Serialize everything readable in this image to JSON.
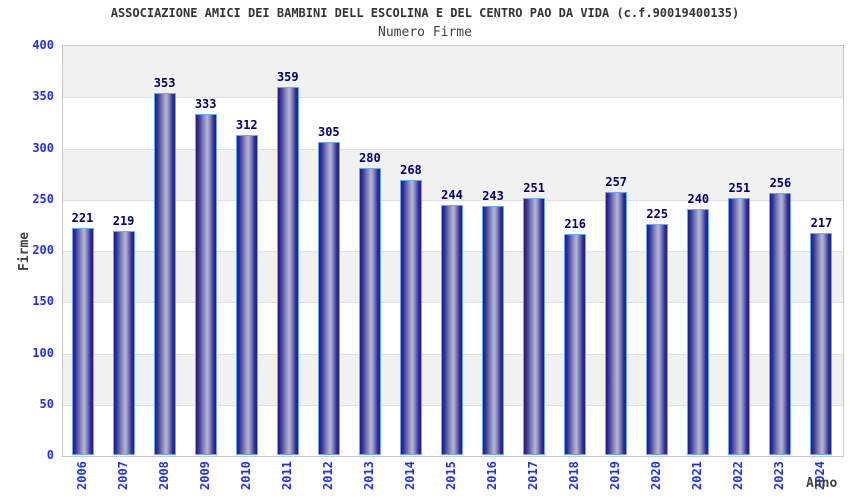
{
  "header": {
    "title": "ASSOCIAZIONE AMICI DEI BAMBINI DELL ESCOLINA E DEL CENTRO PAO DA VIDA (c.f.90019400135)",
    "subtitle": "Numero Firme"
  },
  "chart_data": {
    "type": "bar",
    "title": "Numero Firme",
    "xlabel": "Anno",
    "ylabel": "Firme",
    "categories": [
      "2006",
      "2007",
      "2008",
      "2009",
      "2010",
      "2011",
      "2012",
      "2013",
      "2014",
      "2015",
      "2016",
      "2017",
      "2018",
      "2019",
      "2020",
      "2021",
      "2022",
      "2023",
      "2024"
    ],
    "values": [
      221,
      219,
      353,
      333,
      312,
      359,
      305,
      280,
      268,
      244,
      243,
      251,
      216,
      257,
      225,
      240,
      251,
      256,
      217
    ],
    "ylim": [
      0,
      400
    ],
    "yticks": [
      0,
      50,
      100,
      150,
      200,
      250,
      300,
      350,
      400
    ],
    "legend": "none",
    "grid": "alternating horizontal bands",
    "colors": {
      "bar_edge_dark": "#1f1f7a",
      "bar_mid": "#30309a",
      "bar_light": "#8585bb",
      "bar_highlight": "#b6b6d6",
      "bar_border": "#6ea6f8",
      "value_label": "#000066",
      "tick_label": "#2233dd",
      "band_gray": "#f1f1f1",
      "band_white": "#ffffff",
      "gridline": "#e0e0e0",
      "plot_border": "#c8c8c8",
      "title": "#333333",
      "axis_title": "#404040"
    }
  }
}
